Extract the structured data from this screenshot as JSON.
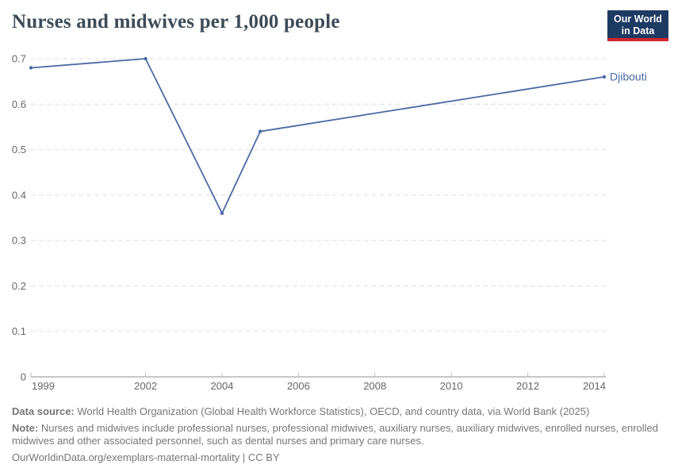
{
  "header": {
    "title": "Nurses and midwives per 1,000 people",
    "logo": {
      "line1": "Our World",
      "line2": "in Data",
      "bg_color": "#1d3a63",
      "bar_color": "#d2262e"
    }
  },
  "chart_data": {
    "type": "line",
    "title": "Nurses and midwives per 1,000 people",
    "xlabel": "",
    "ylabel": "",
    "xlim": [
      1999,
      2014
    ],
    "ylim": [
      0,
      0.7
    ],
    "grid": "dashed-horizontal",
    "legend_position": "end-of-line-label",
    "xticks": [
      1999,
      2002,
      2004,
      2006,
      2008,
      2010,
      2012,
      2014
    ],
    "yticks": [
      {
        "value": 0,
        "label": "0"
      },
      {
        "value": 0.1,
        "label": "0.1"
      },
      {
        "value": 0.2,
        "label": "0.2"
      },
      {
        "value": 0.3,
        "label": "0.3"
      },
      {
        "value": 0.4,
        "label": "0.4"
      },
      {
        "value": 0.5,
        "label": "0.5"
      },
      {
        "value": 0.6,
        "label": "0.6"
      },
      {
        "value": 0.7,
        "label": "0.7"
      }
    ],
    "series": [
      {
        "name": "Djibouti",
        "color": "#4a6aa5",
        "points": [
          {
            "x": 1999,
            "y": 0.68
          },
          {
            "x": 2002,
            "y": 0.7
          },
          {
            "x": 2004,
            "y": 0.36
          },
          {
            "x": 2005,
            "y": 0.54
          },
          {
            "x": 2014,
            "y": 0.66
          }
        ]
      }
    ]
  },
  "footer": {
    "data_source_label": "Data source:",
    "data_source_text": "World Health Organization (Global Health Workforce Statistics), OECD, and country data, via World Bank (2025)",
    "note_label": "Note:",
    "note_text": "Nurses and midwives include professional nurses, professional midwives, auxiliary nurses, auxiliary midwives, enrolled nurses, enrolled midwives and other associated personnel, such as dental nurses and primary care nurses.",
    "link_text": "OurWorldinData.org/exemplars-maternal-mortality | CC BY"
  }
}
